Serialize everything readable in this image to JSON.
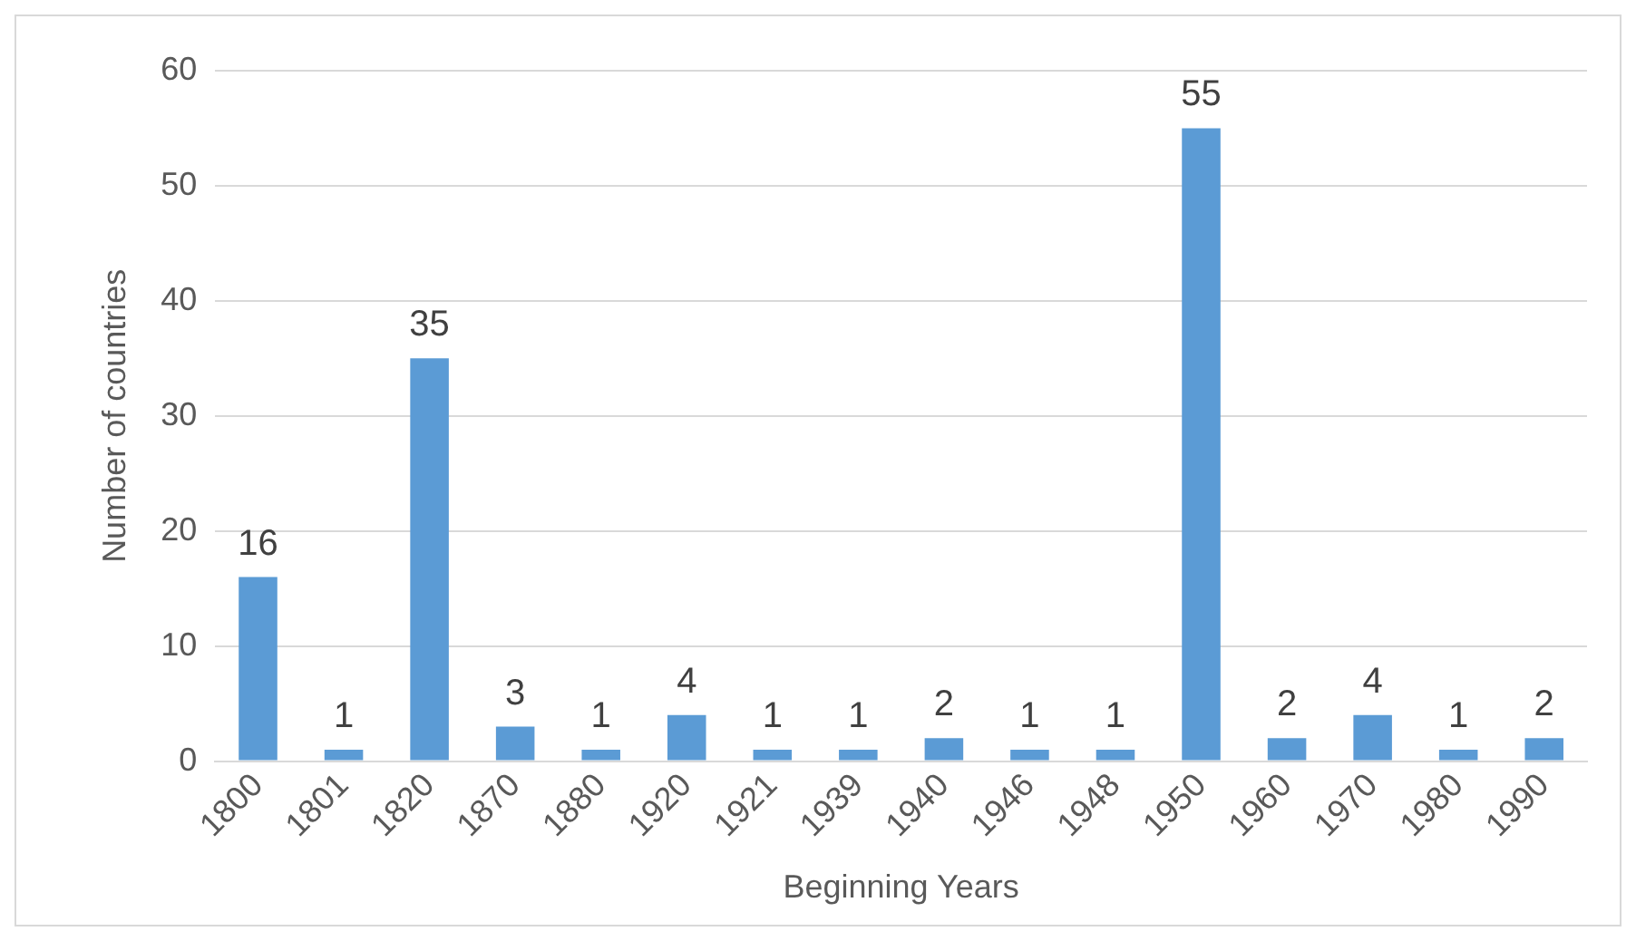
{
  "chart_data": {
    "type": "bar",
    "xlabel": "Beginning Years",
    "ylabel": "Number of countries",
    "categories": [
      "1800",
      "1801",
      "1820",
      "1870",
      "1880",
      "1920",
      "1921",
      "1939",
      "1940",
      "1946",
      "1948",
      "1950",
      "1960",
      "1970",
      "1980",
      "1990"
    ],
    "values": [
      16,
      1,
      35,
      3,
      1,
      4,
      1,
      1,
      2,
      1,
      1,
      55,
      2,
      4,
      1,
      2
    ],
    "color": "#5b9bd5",
    "ylim": [
      0,
      60
    ],
    "yticks": [
      0,
      10,
      20,
      30,
      40,
      50,
      60
    ],
    "grid": "y",
    "data_labels": true
  }
}
